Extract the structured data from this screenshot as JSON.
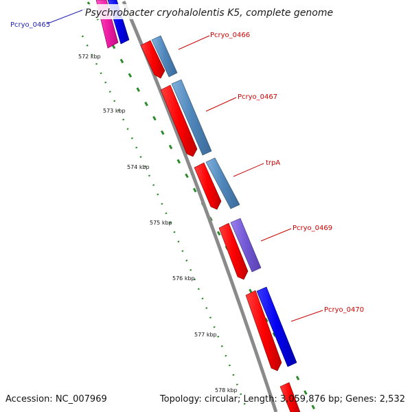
{
  "title": "Psychrobacter cryohalolentis K5, complete genome",
  "footer": {
    "accession": "Accession: NC_007969",
    "summary": "Topology: circular; Length: 3,059,876 bp; Genes: 2,532"
  },
  "ticks": [
    "572 kbp",
    "573 kbp",
    "574 kbp",
    "575 kbp",
    "576 kbp",
    "577 kbp",
    "578 kbp"
  ],
  "genes": [
    {
      "id": "pcryo-0465",
      "label": "Pcryo_0465",
      "label_color": "#1e1eb4"
    },
    {
      "id": "pcryo-0466",
      "label": "Pcryo_0466",
      "label_color": "#cc0000"
    },
    {
      "id": "pcryo-0467",
      "label": "Pcryo_0467",
      "label_color": "#cc0000"
    },
    {
      "id": "trpa",
      "label": "trpA",
      "label_color": "#cc0000"
    },
    {
      "id": "pcryo-0469",
      "label": "Pcryo_0469",
      "label_color": "#cc0000"
    },
    {
      "id": "pcryo-0470",
      "label": "Pcryo_0470",
      "label_color": "#cc0000"
    }
  ],
  "colors": {
    "backbone": "#8a8a8a",
    "cds": "#ff0000",
    "steelblue": "#5a8fc2",
    "blue": "#1010e8",
    "violet": "#7a5ad6",
    "magenta": "#f01ea6",
    "tick": "#2a8a2a"
  }
}
